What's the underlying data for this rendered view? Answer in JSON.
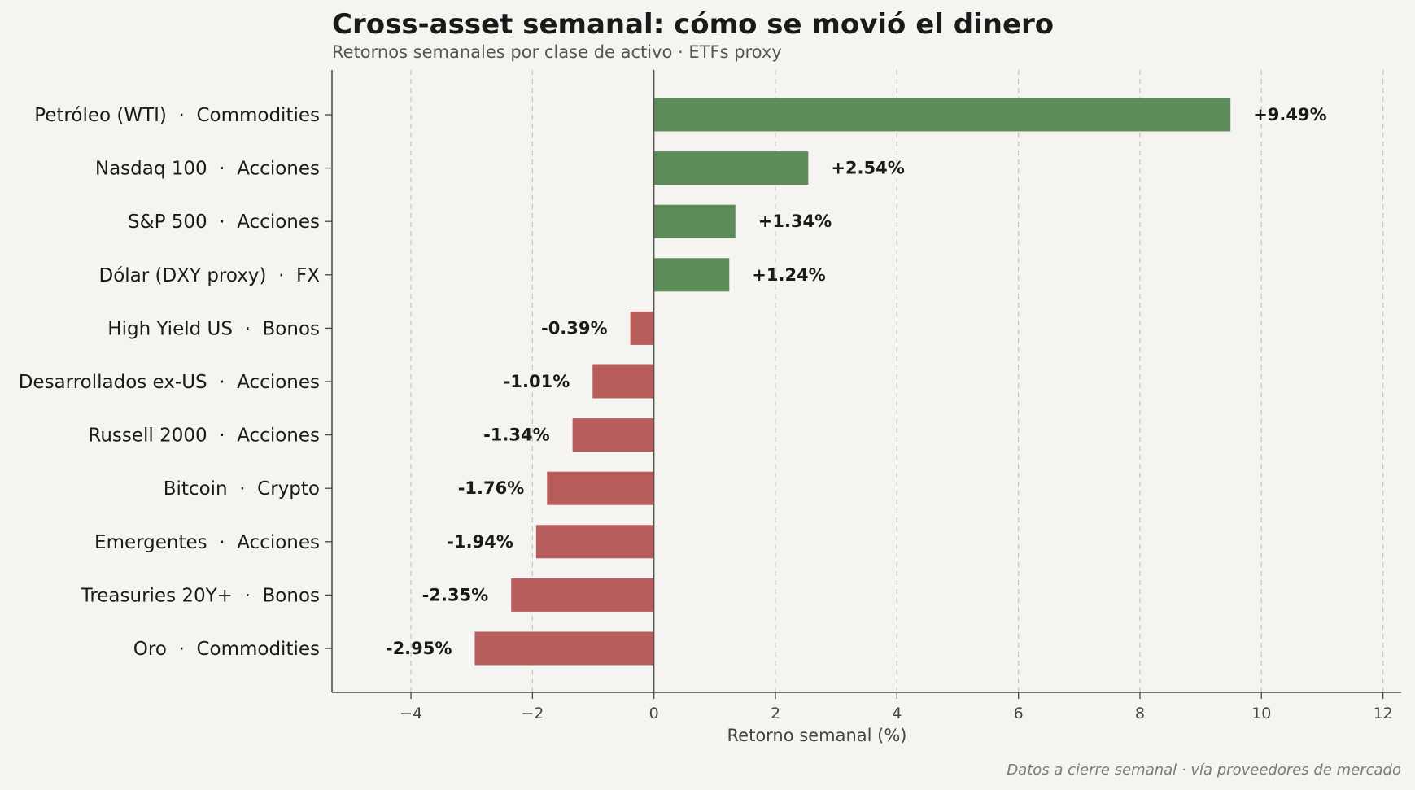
{
  "chart_data": {
    "type": "bar",
    "orientation": "horizontal",
    "title": "Cross-asset semanal: cómo se movió el dinero",
    "subtitle": "Retornos semanales por clase de activo · ETFs proxy",
    "xlabel": "Retorno semanal (%)",
    "ylabel": "",
    "footnote": "Datos a cierre semanal · vía proveedores de mercado",
    "xlim": [
      -5.3,
      12.3
    ],
    "xticks": [
      -4,
      -2,
      0,
      2,
      4,
      6,
      8,
      10,
      12
    ],
    "grid": "x, dashed",
    "colors": {
      "positive": "#5b8c5a",
      "negative": "#b85c5c"
    },
    "categories": [
      "Petróleo (WTI)  ·  Commodities",
      "Nasdaq 100  ·  Acciones",
      "S&P 500  ·  Acciones",
      "Dólar (DXY proxy)  ·  FX",
      "High Yield US  ·  Bonos",
      "Desarrollados ex-US  ·  Acciones",
      "Russell 2000  ·  Acciones",
      "Bitcoin  ·  Crypto",
      "Emergentes  ·  Acciones",
      "Treasuries 20Y+  ·  Bonos",
      "Oro  ·  Commodities"
    ],
    "values": [
      9.49,
      2.54,
      1.34,
      1.24,
      -0.39,
      -1.01,
      -1.34,
      -1.76,
      -1.94,
      -2.35,
      -2.95
    ],
    "labels": [
      "+9.49%",
      "+2.54%",
      "+1.34%",
      "+1.24%",
      "-0.39%",
      "-1.01%",
      "-1.34%",
      "-1.76%",
      "-1.94%",
      "-2.35%",
      "-2.95%"
    ]
  }
}
